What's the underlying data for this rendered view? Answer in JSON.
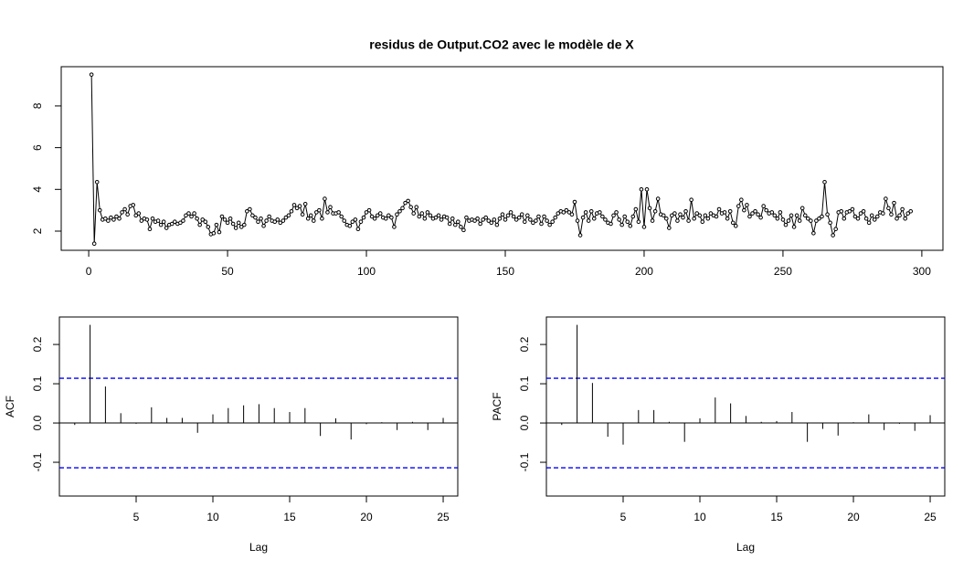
{
  "chart_data": [
    {
      "type": "line",
      "title": "residus de Output.CO2 avec le modèle de X",
      "color": "#000000",
      "x": [
        1,
        2,
        3,
        4,
        5,
        6,
        7,
        8,
        9,
        10,
        11,
        12,
        13,
        14,
        15,
        16,
        17,
        18,
        19,
        20,
        21,
        22,
        23,
        24,
        25,
        26,
        27,
        28,
        29,
        30,
        31,
        32,
        33,
        34,
        35,
        36,
        37,
        38,
        39,
        40,
        41,
        42,
        43,
        44,
        45,
        46,
        47,
        48,
        49,
        50,
        51,
        52,
        53,
        54,
        55,
        56,
        57,
        58,
        59,
        60,
        61,
        62,
        63,
        64,
        65,
        66,
        67,
        68,
        69,
        70,
        71,
        72,
        73,
        74,
        75,
        76,
        77,
        78,
        79,
        80,
        81,
        82,
        83,
        84,
        85,
        86,
        87,
        88,
        89,
        90,
        91,
        92,
        93,
        94,
        95,
        96,
        97,
        98,
        99,
        100,
        101,
        102,
        103,
        104,
        105,
        106,
        107,
        108,
        109,
        110,
        111,
        112,
        113,
        114,
        115,
        116,
        117,
        118,
        119,
        120,
        121,
        122,
        123,
        124,
        125,
        126,
        127,
        128,
        129,
        130,
        131,
        132,
        133,
        134,
        135,
        136,
        137,
        138,
        139,
        140,
        141,
        142,
        143,
        144,
        145,
        146,
        147,
        148,
        149,
        150,
        151,
        152,
        153,
        154,
        155,
        156,
        157,
        158,
        159,
        160,
        161,
        162,
        163,
        164,
        165,
        166,
        167,
        168,
        169,
        170,
        171,
        172,
        173,
        174,
        175,
        176,
        177,
        178,
        179,
        180,
        181,
        182,
        183,
        184,
        185,
        186,
        187,
        188,
        189,
        190,
        191,
        192,
        193,
        194,
        195,
        196,
        197,
        198,
        199,
        200,
        201,
        202,
        203,
        204,
        205,
        206,
        207,
        208,
        209,
        210,
        211,
        212,
        213,
        214,
        215,
        216,
        217,
        218,
        219,
        220,
        221,
        222,
        223,
        224,
        225,
        226,
        227,
        228,
        229,
        230,
        231,
        232,
        233,
        234,
        235,
        236,
        237,
        238,
        239,
        240,
        241,
        242,
        243,
        244,
        245,
        246,
        247,
        248,
        249,
        250,
        251,
        252,
        253,
        254,
        255,
        256,
        257,
        258,
        259,
        260,
        261,
        262,
        263,
        264,
        265,
        266,
        267,
        268,
        269,
        270,
        271,
        272,
        273,
        274,
        275,
        276,
        277,
        278,
        279,
        280,
        281,
        282,
        283,
        284,
        285,
        286,
        287,
        288,
        289,
        290,
        291,
        292,
        293,
        294,
        295,
        296
      ],
      "values": [
        9.5,
        1.4,
        4.35,
        3.0,
        2.55,
        2.6,
        2.5,
        2.65,
        2.55,
        2.7,
        2.6,
        2.9,
        3.05,
        2.8,
        3.2,
        3.25,
        2.75,
        2.85,
        2.5,
        2.6,
        2.55,
        2.1,
        2.6,
        2.45,
        2.5,
        2.3,
        2.45,
        2.15,
        2.3,
        2.35,
        2.45,
        2.35,
        2.4,
        2.5,
        2.75,
        2.85,
        2.7,
        2.85,
        2.6,
        2.3,
        2.55,
        2.45,
        2.2,
        1.85,
        1.9,
        2.3,
        1.95,
        2.7,
        2.55,
        2.4,
        2.6,
        2.35,
        2.15,
        2.4,
        2.2,
        2.3,
        2.95,
        3.05,
        2.75,
        2.65,
        2.45,
        2.6,
        2.25,
        2.5,
        2.7,
        2.5,
        2.45,
        2.55,
        2.4,
        2.5,
        2.65,
        2.75,
        2.95,
        3.25,
        3.1,
        3.2,
        2.8,
        3.3,
        2.6,
        2.75,
        2.5,
        2.9,
        3.0,
        2.6,
        3.55,
        2.9,
        3.15,
        2.85,
        2.85,
        2.9,
        2.7,
        2.5,
        2.3,
        2.25,
        2.45,
        2.55,
        2.1,
        2.45,
        2.65,
        2.9,
        3.0,
        2.7,
        2.6,
        2.75,
        2.85,
        2.65,
        2.6,
        2.75,
        2.65,
        2.2,
        2.8,
        2.95,
        3.1,
        3.35,
        3.45,
        3.15,
        2.85,
        3.15,
        2.7,
        2.85,
        2.6,
        2.9,
        2.75,
        2.6,
        2.65,
        2.75,
        2.55,
        2.7,
        2.65,
        2.35,
        2.6,
        2.3,
        2.45,
        2.2,
        2.05,
        2.65,
        2.5,
        2.55,
        2.5,
        2.6,
        2.35,
        2.55,
        2.65,
        2.5,
        2.4,
        2.55,
        2.3,
        2.6,
        2.8,
        2.55,
        2.75,
        2.9,
        2.7,
        2.55,
        2.65,
        2.8,
        2.45,
        2.75,
        2.55,
        2.4,
        2.5,
        2.7,
        2.35,
        2.7,
        2.5,
        2.3,
        2.45,
        2.65,
        2.85,
        2.95,
        2.9,
        3.0,
        2.9,
        2.8,
        3.4,
        2.5,
        1.8,
        2.65,
        2.9,
        2.5,
        2.95,
        2.6,
        2.85,
        2.9,
        2.7,
        2.55,
        2.4,
        2.35,
        2.75,
        2.9,
        2.55,
        2.3,
        2.7,
        2.45,
        2.25,
        2.7,
        3.05,
        2.45,
        4.0,
        2.2,
        4.0,
        3.1,
        2.5,
        2.95,
        3.55,
        2.8,
        2.75,
        2.6,
        2.15,
        2.75,
        2.85,
        2.5,
        2.8,
        2.65,
        2.95,
        2.5,
        3.5,
        2.6,
        2.85,
        2.75,
        2.45,
        2.75,
        2.6,
        2.85,
        2.75,
        2.7,
        3.05,
        2.85,
        2.9,
        2.6,
        2.95,
        2.4,
        2.25,
        3.2,
        3.5,
        3.0,
        3.25,
        2.7,
        2.85,
        2.95,
        2.8,
        2.65,
        3.2,
        3.0,
        2.85,
        2.9,
        2.75,
        2.6,
        2.9,
        2.55,
        2.3,
        2.5,
        2.75,
        2.2,
        2.75,
        2.5,
        3.1,
        2.75,
        2.6,
        2.5,
        1.9,
        2.5,
        2.6,
        2.7,
        4.35,
        2.8,
        2.4,
        1.8,
        2.1,
        2.9,
        2.95,
        2.6,
        2.9,
        2.95,
        3.05,
        2.7,
        2.6,
        2.85,
        2.95,
        2.6,
        2.4,
        2.75,
        2.55,
        2.7,
        2.9,
        2.85,
        3.55,
        3.1,
        2.8,
        3.35,
        2.6,
        2.75,
        3.05,
        2.6,
        2.85,
        2.95
      ],
      "xlim": [
        -9.9,
        307.6
      ],
      "ylim": [
        1.08,
        9.88
      ],
      "xticks": [
        0,
        50,
        100,
        150,
        200,
        250,
        300
      ],
      "yticks": [
        2,
        4,
        6,
        8
      ]
    },
    {
      "type": "bar",
      "x_label": "Lag",
      "y_label": "ACF",
      "color": "#000000",
      "ci_color": "#0000ff",
      "x": [
        1,
        2,
        3,
        4,
        5,
        6,
        7,
        8,
        9,
        10,
        11,
        12,
        13,
        14,
        15,
        16,
        17,
        18,
        19,
        20,
        21,
        22,
        23,
        24,
        25
      ],
      "values": [
        -0.005,
        0.25,
        0.093,
        0.025,
        -0.002,
        0.04,
        0.013,
        0.013,
        -0.025,
        0.022,
        0.038,
        0.045,
        0.048,
        0.038,
        0.028,
        0.038,
        -0.033,
        0.012,
        -0.042,
        -0.003,
        0.002,
        -0.018,
        0.003,
        -0.018,
        0.013
      ],
      "ci_lines": [
        -0.114,
        0.114
      ],
      "xlim": [
        0,
        25.95
      ],
      "ylim": [
        -0.186,
        0.27
      ],
      "xticks": [
        5,
        10,
        15,
        20,
        25
      ],
      "yticks": [
        -0.1,
        {
          "value": 0,
          "label": "0.0"
        },
        0.1,
        0.2
      ]
    },
    {
      "type": "bar",
      "x_label": "Lag",
      "y_label": "PACF",
      "color": "#000000",
      "ci_color": "#0000ff",
      "x": [
        1,
        2,
        3,
        4,
        5,
        6,
        7,
        8,
        9,
        10,
        11,
        12,
        13,
        14,
        15,
        16,
        17,
        18,
        19,
        20,
        21,
        22,
        23,
        24,
        25
      ],
      "values": [
        -0.005,
        0.25,
        0.102,
        -0.035,
        -0.055,
        0.033,
        0.033,
        0.003,
        -0.048,
        0.012,
        0.065,
        0.05,
        0.018,
        0.003,
        0.005,
        0.028,
        -0.048,
        -0.015,
        -0.032,
        0.002,
        0.022,
        -0.018,
        -0.002,
        -0.02,
        0.02
      ],
      "ci_lines": [
        -0.114,
        0.114
      ],
      "xlim": [
        0,
        25.95
      ],
      "ylim": [
        -0.186,
        0.27
      ],
      "xticks": [
        5,
        10,
        15,
        20,
        25
      ],
      "yticks": [
        -0.1,
        {
          "value": 0,
          "label": "0.0"
        },
        0.1,
        0.2
      ]
    }
  ]
}
